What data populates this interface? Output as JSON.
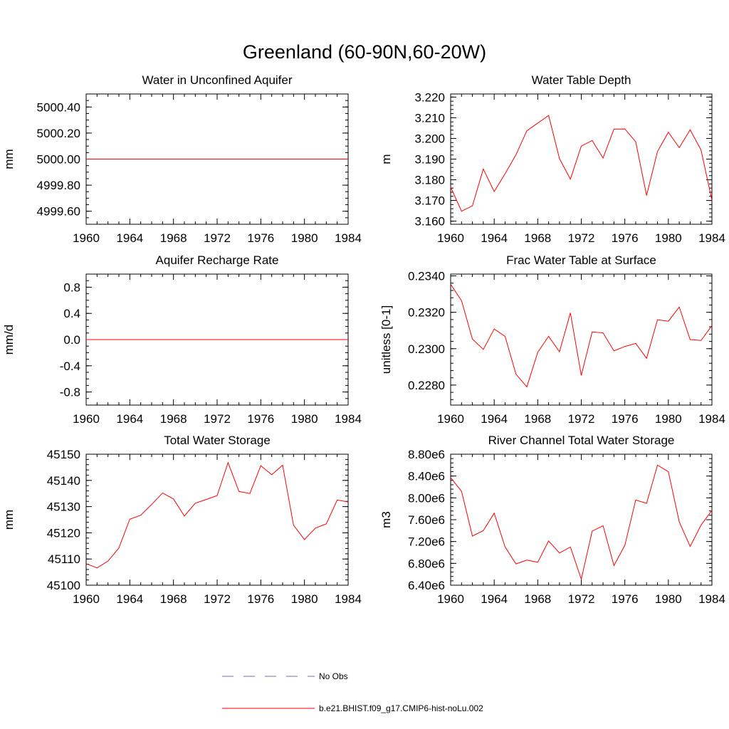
{
  "figure": {
    "title": "Greenland (60-90N,60-20W)",
    "legend": [
      {
        "label": "No Obs",
        "color": "#6a6fb0",
        "style": "dashed"
      },
      {
        "label": "b.e21.BHIST.f09_g17.CMIP6-hist-noLu.002",
        "color": "#ff0000",
        "style": "solid"
      }
    ]
  },
  "chart_data": [
    {
      "type": "line",
      "title": "Water in Unconfined Aquifer",
      "xlabel": "",
      "ylabel": "mm",
      "xlim": [
        1960,
        1984
      ],
      "ylim": [
        4999.5,
        5000.5
      ],
      "xticks": [
        "1960",
        "1964",
        "1968",
        "1972",
        "1976",
        "1980",
        "1984"
      ],
      "yticks": [
        {
          "value": 4999.6,
          "label": "4999.60"
        },
        {
          "value": 4999.8,
          "label": "4999.80"
        },
        {
          "value": 5000.0,
          "label": "5000.00"
        },
        {
          "value": 5000.2,
          "label": "5000.20"
        },
        {
          "value": 5000.4,
          "label": "5000.40"
        }
      ],
      "yminor": 0.05,
      "x": [
        1960,
        1961,
        1962,
        1963,
        1964,
        1965,
        1966,
        1967,
        1968,
        1969,
        1970,
        1971,
        1972,
        1973,
        1974,
        1975,
        1976,
        1977,
        1978,
        1979,
        1980,
        1981,
        1982,
        1983,
        1984
      ],
      "series": [
        {
          "color": "#ff0000",
          "values": [
            5000,
            5000,
            5000,
            5000,
            5000,
            5000,
            5000,
            5000,
            5000,
            5000,
            5000,
            5000,
            5000,
            5000,
            5000,
            5000,
            5000,
            5000,
            5000,
            5000,
            5000,
            5000,
            5000,
            5000,
            5000
          ]
        }
      ]
    },
    {
      "type": "line",
      "title": "Water Table Depth",
      "xlabel": "",
      "ylabel": "m",
      "xlim": [
        1960,
        1984
      ],
      "ylim": [
        3.1585,
        3.2215
      ],
      "xticks": [
        "1960",
        "1964",
        "1968",
        "1972",
        "1976",
        "1980",
        "1984"
      ],
      "yticks": [
        {
          "value": 3.16,
          "label": "3.160"
        },
        {
          "value": 3.17,
          "label": "3.170"
        },
        {
          "value": 3.18,
          "label": "3.180"
        },
        {
          "value": 3.19,
          "label": "3.190"
        },
        {
          "value": 3.2,
          "label": "3.200"
        },
        {
          "value": 3.21,
          "label": "3.210"
        },
        {
          "value": 3.22,
          "label": "3.220"
        }
      ],
      "yminor": 0.002,
      "x": [
        1960,
        1961,
        1962,
        1963,
        1964,
        1965,
        1966,
        1967,
        1968,
        1969,
        1970,
        1971,
        1972,
        1973,
        1974,
        1975,
        1976,
        1977,
        1978,
        1979,
        1980,
        1981,
        1982,
        1983,
        1984
      ],
      "series": [
        {
          "color": "#ff0000",
          "values": [
            3.1765,
            3.1648,
            3.1674,
            3.1852,
            3.1743,
            3.1829,
            3.1921,
            3.2037,
            3.2074,
            3.2111,
            3.1902,
            3.1803,
            3.1963,
            3.199,
            3.1905,
            3.2045,
            3.2046,
            3.1984,
            3.1724,
            3.1937,
            3.203,
            3.1955,
            3.2042,
            3.1944,
            3.1701
          ]
        }
      ]
    },
    {
      "type": "line",
      "title": "Aquifer Recharge Rate",
      "xlabel": "",
      "ylabel": "mm/d",
      "xlim": [
        1960,
        1984
      ],
      "ylim": [
        -1.0,
        1.0
      ],
      "xticks": [
        "1960",
        "1964",
        "1968",
        "1972",
        "1976",
        "1980",
        "1984"
      ],
      "yticks": [
        {
          "value": -0.8,
          "label": "-0.8"
        },
        {
          "value": -0.4,
          "label": "-0.4"
        },
        {
          "value": 0.0,
          "label": "0.0"
        },
        {
          "value": 0.4,
          "label": "0.4"
        },
        {
          "value": 0.8,
          "label": "0.8"
        }
      ],
      "yminor": 0.1,
      "x": [
        1960,
        1961,
        1962,
        1963,
        1964,
        1965,
        1966,
        1967,
        1968,
        1969,
        1970,
        1971,
        1972,
        1973,
        1974,
        1975,
        1976,
        1977,
        1978,
        1979,
        1980,
        1981,
        1982,
        1983,
        1984
      ],
      "series": [
        {
          "color": "#ff0000",
          "values": [
            0,
            0,
            0,
            0,
            0,
            0,
            0,
            0,
            0,
            0,
            0,
            0,
            0,
            0,
            0,
            0,
            0,
            0,
            0,
            0,
            0,
            0,
            0,
            0,
            0
          ]
        }
      ]
    },
    {
      "type": "line",
      "title": "Frac Water Table at Surface",
      "xlabel": "",
      "ylabel": "unitless [0-1]",
      "xlim": [
        1960,
        1984
      ],
      "ylim": [
        0.2269,
        0.2341
      ],
      "xticks": [
        "1960",
        "1964",
        "1968",
        "1972",
        "1976",
        "1980",
        "1984"
      ],
      "yticks": [
        {
          "value": 0.228,
          "label": "0.2280"
        },
        {
          "value": 0.23,
          "label": "0.2300"
        },
        {
          "value": 0.232,
          "label": "0.2320"
        },
        {
          "value": 0.234,
          "label": "0.2340"
        }
      ],
      "yminor": 0.0004,
      "x": [
        1960,
        1961,
        1962,
        1963,
        1964,
        1965,
        1966,
        1967,
        1968,
        1969,
        1970,
        1971,
        1972,
        1973,
        1974,
        1975,
        1976,
        1977,
        1978,
        1979,
        1980,
        1981,
        1982,
        1983,
        1984
      ],
      "series": [
        {
          "color": "#ff0000",
          "values": [
            0.23354,
            0.23264,
            0.23053,
            0.22996,
            0.23108,
            0.23068,
            0.2286,
            0.2279,
            0.2298,
            0.23068,
            0.22983,
            0.23197,
            0.22853,
            0.23092,
            0.23087,
            0.22988,
            0.23012,
            0.23029,
            0.22947,
            0.23159,
            0.23151,
            0.23229,
            0.2305,
            0.23045,
            0.23127
          ]
        }
      ]
    },
    {
      "type": "line",
      "title": "Total Water Storage",
      "xlabel": "",
      "ylabel": "mm",
      "xlim": [
        1960,
        1984
      ],
      "ylim": [
        45100,
        45150
      ],
      "xticks": [
        "1960",
        "1964",
        "1968",
        "1972",
        "1976",
        "1980",
        "1984"
      ],
      "yticks": [
        {
          "value": 45100,
          "label": "45100"
        },
        {
          "value": 45110,
          "label": "45110"
        },
        {
          "value": 45120,
          "label": "45120"
        },
        {
          "value": 45130,
          "label": "45130"
        },
        {
          "value": 45140,
          "label": "45140"
        },
        {
          "value": 45150,
          "label": "45150"
        }
      ],
      "yminor": 2,
      "x": [
        1960,
        1961,
        1962,
        1963,
        1964,
        1965,
        1966,
        1967,
        1968,
        1969,
        1970,
        1971,
        1972,
        1973,
        1974,
        1975,
        1976,
        1977,
        1978,
        1979,
        1980,
        1981,
        1982,
        1983,
        1984
      ],
      "series": [
        {
          "color": "#ff0000",
          "values": [
            45108.2,
            45106.6,
            45109.2,
            45114.2,
            45125.2,
            45126.7,
            45130.8,
            45135.2,
            45132.9,
            45126.4,
            45131.3,
            45132.7,
            45134.2,
            45146.8,
            45135.8,
            45135.0,
            45145.6,
            45142.2,
            45145.8,
            45122.9,
            45117.4,
            45121.8,
            45123.4,
            45132.5,
            45131.8
          ]
        }
      ]
    },
    {
      "type": "line",
      "title": "River Channel Total Water Storage",
      "xlabel": "",
      "ylabel": "m3",
      "xlim": [
        1960,
        1984
      ],
      "ylim": [
        6400000,
        8800000
      ],
      "xticks": [
        "1960",
        "1964",
        "1968",
        "1972",
        "1976",
        "1980",
        "1984"
      ],
      "yticks": [
        {
          "value": 6400000,
          "label": "6.40e6"
        },
        {
          "value": 6800000,
          "label": "6.80e6"
        },
        {
          "value": 7200000,
          "label": "7.20e6"
        },
        {
          "value": 7600000,
          "label": "7.60e6"
        },
        {
          "value": 8000000,
          "label": "8.00e6"
        },
        {
          "value": 8400000,
          "label": "8.40e6"
        },
        {
          "value": 8800000,
          "label": "8.80e6"
        }
      ],
      "yminor": 80000,
      "x": [
        1960,
        1961,
        1962,
        1963,
        1964,
        1965,
        1966,
        1967,
        1968,
        1969,
        1970,
        1971,
        1972,
        1973,
        1974,
        1975,
        1976,
        1977,
        1978,
        1979,
        1980,
        1981,
        1982,
        1983,
        1984
      ],
      "series": [
        {
          "color": "#ff0000",
          "values": [
            8370000,
            8120000,
            7300000,
            7400000,
            7720000,
            7100000,
            6790000,
            6860000,
            6820000,
            7210000,
            6990000,
            7100000,
            6510000,
            7390000,
            7490000,
            6760000,
            7130000,
            7960000,
            7900000,
            8600000,
            8480000,
            7560000,
            7110000,
            7500000,
            7770000
          ]
        }
      ]
    }
  ]
}
